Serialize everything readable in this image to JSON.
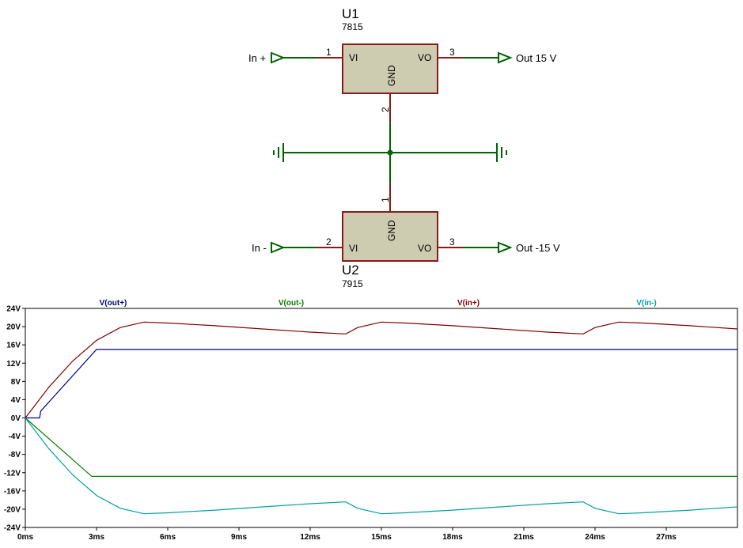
{
  "schematic": {
    "u1": {
      "ref": "U1",
      "part": "7815",
      "pin_vi": "VI",
      "pin_vo": "VO",
      "pin_gnd": "GND",
      "pin_num_in": "1",
      "pin_num_out": "3",
      "pin_num_gnd": "2"
    },
    "u2": {
      "ref": "U2",
      "part": "7915",
      "pin_vi": "VI",
      "pin_vo": "VO",
      "pin_gnd": "GND",
      "pin_num_in": "2",
      "pin_num_out": "3",
      "pin_num_gnd": "1"
    },
    "ports": {
      "in_pos": "In +",
      "out_pos": "Out 15 V",
      "in_neg": "In -",
      "out_neg": "Out -15 V"
    },
    "colors": {
      "body": "#cdcbb0",
      "body_stroke": "#8b1a1a",
      "wire": "#006400",
      "pin": "#8b1a1a"
    }
  },
  "chart_data": {
    "type": "line",
    "xlabel": "",
    "ylabel": "",
    "xlim": [
      0,
      30
    ],
    "ylim": [
      -24,
      24
    ],
    "x_ticks": [
      "0ms",
      "3ms",
      "6ms",
      "9ms",
      "12ms",
      "15ms",
      "18ms",
      "21ms",
      "24ms",
      "27ms"
    ],
    "y_ticks": [
      "24V",
      "20V",
      "16V",
      "12V",
      "8V",
      "4V",
      "0V",
      "-4V",
      "-8V",
      "-12V",
      "-16V",
      "-20V",
      "-24V"
    ],
    "grid": false,
    "legend": "top",
    "series": [
      {
        "name": "V(out+)",
        "color": "#000080",
        "x": [
          0,
          0.6,
          0.65,
          3,
          30
        ],
        "y": [
          0,
          0,
          1.5,
          15,
          15
        ]
      },
      {
        "name": "V(out-)",
        "color": "#008000",
        "x": [
          0,
          2.8,
          30
        ],
        "y": [
          0,
          -12.8,
          -12.8
        ]
      },
      {
        "name": "V(in+)",
        "color": "#800000",
        "x": [
          0,
          1,
          2,
          3,
          4,
          5,
          6,
          8,
          10,
          12,
          13.5,
          14,
          15,
          16,
          18,
          20,
          22,
          23.5,
          24,
          25,
          26,
          28,
          30
        ],
        "y": [
          0,
          6.8,
          12.5,
          17,
          19.8,
          21,
          20.8,
          20.2,
          19.5,
          18.8,
          18.4,
          19.8,
          21,
          20.8,
          20.2,
          19.5,
          18.8,
          18.4,
          19.8,
          21,
          20.8,
          20.2,
          19.5
        ]
      },
      {
        "name": "V(in-)",
        "color": "#00a0a0",
        "x": [
          0,
          1,
          2,
          3,
          4,
          5,
          6,
          8,
          10,
          12,
          13.5,
          14,
          15,
          16,
          18,
          20,
          22,
          23.5,
          24,
          25,
          26,
          28,
          30
        ],
        "y": [
          0,
          -6.8,
          -12.5,
          -17,
          -19.8,
          -21,
          -20.8,
          -20.2,
          -19.5,
          -18.8,
          -18.4,
          -19.8,
          -21,
          -20.8,
          -20.2,
          -19.5,
          -18.8,
          -18.4,
          -19.8,
          -21,
          -20.8,
          -20.2,
          -19.5
        ]
      }
    ]
  }
}
